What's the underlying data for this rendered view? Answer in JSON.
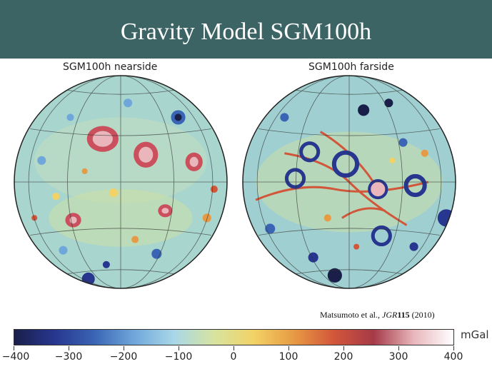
{
  "title": "Gravity Model SGM100h",
  "panels": {
    "nearside": {
      "label": "SGM100h nearside"
    },
    "farside": {
      "label": "SGM100h farside"
    }
  },
  "citation": {
    "authors": "Matsumoto et al., ",
    "journal": "JGR",
    "volume": "115",
    "year": " (2010)"
  },
  "colorbar": {
    "unit": "mGal",
    "ticks": [
      "−400",
      "−300",
      "−200",
      "−100",
      "0",
      "100",
      "200",
      "300",
      "400"
    ],
    "stops": [
      "#1a1f4a",
      "#27368f",
      "#3a64b4",
      "#6fa7da",
      "#a9d7e8",
      "#d6e4a0",
      "#f2d266",
      "#e79a44",
      "#d2563a",
      "#a53a48",
      "#e8b6bb",
      "#ffffff"
    ]
  },
  "colors": {
    "header": "#3c6464",
    "globe_base": "#a9d5cf"
  }
}
